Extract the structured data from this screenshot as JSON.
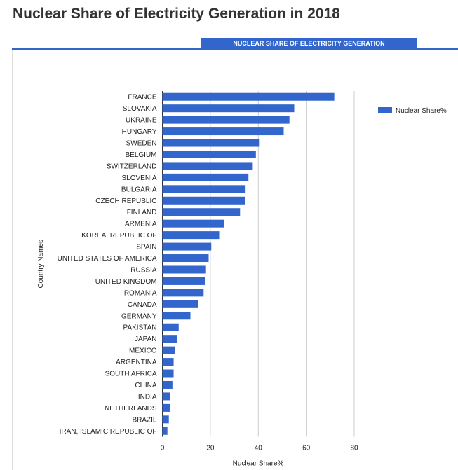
{
  "page": {
    "title": "Nuclear Share of Electricity Generation in 2018"
  },
  "tab": {
    "label": "NUCLEAR SHARE OF ELECTRICITY GENERATION"
  },
  "chart_data": {
    "type": "bar",
    "orientation": "horizontal",
    "title": "",
    "xlabel": "Nuclear Share%",
    "ylabel": "Country Names",
    "xlim": [
      0,
      80
    ],
    "xticks": [
      0,
      20,
      40,
      60,
      80
    ],
    "grid": true,
    "legend_position": "top-right",
    "bar_color": "#3366cc",
    "categories": [
      "FRANCE",
      "SLOVAKIA",
      "UKRAINE",
      "HUNGARY",
      "SWEDEN",
      "BELGIUM",
      "SWITZERLAND",
      "SLOVENIA",
      "BULGARIA",
      "CZECH REPUBLIC",
      "FINLAND",
      "ARMENIA",
      "KOREA, REPUBLIC OF",
      "SPAIN",
      "UNITED STATES OF AMERICA",
      "RUSSIA",
      "UNITED KINGDOM",
      "ROMANIA",
      "CANADA",
      "GERMANY",
      "PAKISTAN",
      "JAPAN",
      "MEXICO",
      "ARGENTINA",
      "SOUTH AFRICA",
      "CHINA",
      "INDIA",
      "NETHERLANDS",
      "BRAZIL",
      "IRAN, ISLAMIC REPUBLIC OF"
    ],
    "series": [
      {
        "name": "Nuclear Share%",
        "values": [
          71.7,
          55.0,
          53.0,
          50.6,
          40.3,
          39.0,
          37.7,
          35.9,
          34.7,
          34.5,
          32.4,
          25.6,
          23.7,
          20.4,
          19.3,
          17.9,
          17.7,
          17.2,
          14.9,
          11.7,
          6.8,
          6.2,
          5.3,
          4.7,
          4.7,
          4.2,
          3.1,
          3.1,
          2.7,
          2.1
        ]
      }
    ]
  }
}
